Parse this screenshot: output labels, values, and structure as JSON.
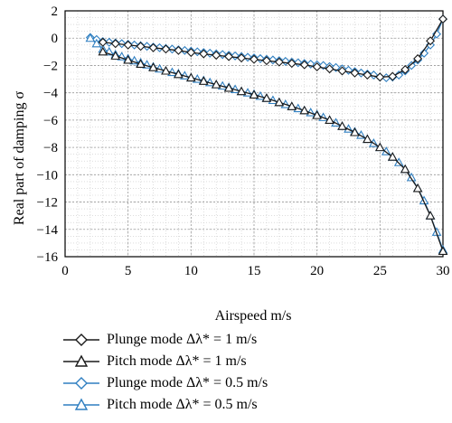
{
  "chart_data": {
    "type": "line",
    "xlabel": "Airspeed m/s",
    "ylabel": "Real part of damping σ",
    "xlim": [
      0,
      30
    ],
    "ylim": [
      -16,
      2
    ],
    "xticks": [
      "0",
      "5",
      "10",
      "15",
      "20",
      "25",
      "30"
    ],
    "yticks": [
      "2",
      "0",
      "−2",
      "−4",
      "−6",
      "−8",
      "−10",
      "−12",
      "−14",
      "−16"
    ],
    "grid": true,
    "legend_position": "below",
    "series": [
      {
        "name": "Plunge mode Δλ* = 1 m/s",
        "marker": "diamond",
        "color": "#1a1a1a",
        "x": [
          3,
          4,
          5,
          6,
          7,
          8,
          9,
          10,
          11,
          12,
          13,
          14,
          15,
          16,
          17,
          18,
          19,
          20,
          21,
          22,
          23,
          24,
          25,
          26,
          27,
          28,
          29,
          30
        ],
        "y": [
          -0.3,
          -0.4,
          -0.5,
          -0.6,
          -0.7,
          -0.8,
          -0.9,
          -1.05,
          -1.15,
          -1.25,
          -1.35,
          -1.45,
          -1.55,
          -1.65,
          -1.75,
          -1.85,
          -1.95,
          -2.1,
          -2.25,
          -2.4,
          -2.55,
          -2.7,
          -2.85,
          -2.8,
          -2.3,
          -1.5,
          -0.2,
          1.4
        ]
      },
      {
        "name": "Pitch mode Δλ* = 1 m/s",
        "marker": "triangle",
        "color": "#1a1a1a",
        "x": [
          3,
          4,
          5,
          6,
          7,
          8,
          9,
          10,
          11,
          12,
          13,
          14,
          15,
          16,
          17,
          18,
          19,
          20,
          21,
          22,
          23,
          24,
          25,
          26,
          27,
          28,
          29,
          30
        ],
        "y": [
          -1.0,
          -1.3,
          -1.6,
          -1.9,
          -2.15,
          -2.4,
          -2.65,
          -2.9,
          -3.15,
          -3.4,
          -3.65,
          -3.9,
          -4.15,
          -4.4,
          -4.7,
          -5.0,
          -5.3,
          -5.65,
          -6.0,
          -6.45,
          -6.9,
          -7.4,
          -8.0,
          -8.7,
          -9.6,
          -11.0,
          -13.0,
          -15.6
        ]
      },
      {
        "name": "Plunge mode Δλ* = 0.5 m/s",
        "marker": "diamond",
        "color": "#2f7fc1",
        "x": [
          2,
          2.5,
          3,
          3.5,
          4,
          4.5,
          5,
          5.5,
          6,
          6.5,
          7,
          7.5,
          8,
          8.5,
          9,
          9.5,
          10,
          10.5,
          11,
          11.5,
          12,
          12.5,
          13,
          13.5,
          14,
          14.5,
          15,
          15.5,
          16,
          16.5,
          17,
          17.5,
          18,
          18.5,
          19,
          19.5,
          20,
          20.5,
          21,
          21.5,
          22,
          22.5,
          23,
          23.5,
          24,
          24.5,
          25,
          25.5,
          26,
          26.5,
          27,
          27.5,
          28,
          28.5,
          29,
          29.5,
          30
        ],
        "y": [
          0.05,
          -0.1,
          -0.25,
          -0.3,
          -0.35,
          -0.4,
          -0.45,
          -0.5,
          -0.55,
          -0.6,
          -0.65,
          -0.7,
          -0.75,
          -0.8,
          -0.85,
          -0.9,
          -0.95,
          -1.0,
          -1.05,
          -1.1,
          -1.15,
          -1.2,
          -1.25,
          -1.3,
          -1.35,
          -1.4,
          -1.45,
          -1.5,
          -1.55,
          -1.6,
          -1.65,
          -1.7,
          -1.75,
          -1.8,
          -1.85,
          -1.9,
          -1.95,
          -2.0,
          -2.08,
          -2.15,
          -2.25,
          -2.35,
          -2.45,
          -2.55,
          -2.62,
          -2.7,
          -2.85,
          -2.9,
          -2.85,
          -2.7,
          -2.4,
          -2.0,
          -1.6,
          -1.1,
          -0.5,
          0.3,
          1.4
        ]
      },
      {
        "name": "Pitch mode Δλ* = 0.5 m/s",
        "marker": "triangle",
        "color": "#2f7fc1",
        "x": [
          2,
          2.5,
          3,
          3.5,
          4,
          4.5,
          5,
          5.5,
          6,
          6.5,
          7,
          7.5,
          8,
          8.5,
          9,
          9.5,
          10,
          10.5,
          11,
          11.5,
          12,
          12.5,
          13,
          13.5,
          14,
          14.5,
          15,
          15.5,
          16,
          16.5,
          17,
          17.5,
          18,
          18.5,
          19,
          19.5,
          20,
          20.5,
          21,
          21.5,
          22,
          22.5,
          23,
          23.5,
          24,
          24.5,
          25,
          25.5,
          26,
          26.5,
          27,
          27.5,
          28,
          28.5,
          29,
          29.5,
          30
        ],
        "y": [
          0.0,
          -0.4,
          -0.8,
          -1.0,
          -1.2,
          -1.35,
          -1.5,
          -1.65,
          -1.8,
          -1.95,
          -2.1,
          -2.25,
          -2.4,
          -2.5,
          -2.6,
          -2.75,
          -2.9,
          -3.0,
          -3.1,
          -3.25,
          -3.4,
          -3.5,
          -3.6,
          -3.75,
          -3.9,
          -4.0,
          -4.1,
          -4.25,
          -4.4,
          -4.55,
          -4.7,
          -4.85,
          -5.0,
          -5.15,
          -5.3,
          -5.45,
          -5.6,
          -5.8,
          -6.0,
          -6.2,
          -6.45,
          -6.65,
          -6.85,
          -7.1,
          -7.4,
          -7.7,
          -8.0,
          -8.3,
          -8.7,
          -9.1,
          -9.6,
          -10.2,
          -11.0,
          -11.9,
          -13.0,
          -14.2,
          -15.5
        ]
      }
    ]
  }
}
